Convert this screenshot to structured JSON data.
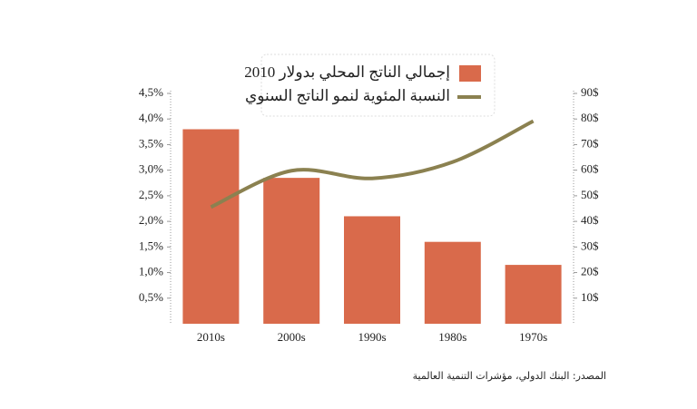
{
  "chart_data": {
    "type": "bar-line",
    "categories": [
      "2010s",
      "2000s",
      "1990s",
      "1980s",
      "1970s"
    ],
    "series": [
      {
        "name": "إجمالي الناتج المحلي بدولار 2010",
        "type": "bar",
        "color": "#d96a4b",
        "axis": "y2",
        "values": [
          76,
          57,
          42,
          32,
          23
        ]
      },
      {
        "name": "النسبة المئوية لنمو الناتج السنوي",
        "type": "line",
        "color": "#8b8150",
        "axis": "y",
        "values": [
          2.28,
          2.99,
          2.84,
          3.16,
          3.96
        ]
      }
    ],
    "ylim": [
      0,
      4.5
    ],
    "yticks": [
      {
        "value": 0.5,
        "label": "0,5%"
      },
      {
        "value": 1.0,
        "label": "1,0%"
      },
      {
        "value": 1.5,
        "label": "1,5%"
      },
      {
        "value": 2.0,
        "label": "2,0%"
      },
      {
        "value": 2.5,
        "label": "2,5%"
      },
      {
        "value": 3.0,
        "label": "3,0%"
      },
      {
        "value": 3.5,
        "label": "3,5%"
      },
      {
        "value": 4.0,
        "label": "4,0%"
      },
      {
        "value": 4.5,
        "label": "4,5%"
      }
    ],
    "y2lim": [
      0,
      90
    ],
    "y2ticks": [
      {
        "value": 10,
        "label": "10$"
      },
      {
        "value": 20,
        "label": "20$"
      },
      {
        "value": 30,
        "label": "30$"
      },
      {
        "value": 40,
        "label": "40$"
      },
      {
        "value": 50,
        "label": "50$"
      },
      {
        "value": 60,
        "label": "60$"
      },
      {
        "value": 70,
        "label": "70$"
      },
      {
        "value": 80,
        "label": "80$"
      },
      {
        "value": 90,
        "label": "90$"
      }
    ],
    "legend_position": "top",
    "source": "المصدر: البنك الدولي، مؤشرات التنمية العالمية"
  }
}
